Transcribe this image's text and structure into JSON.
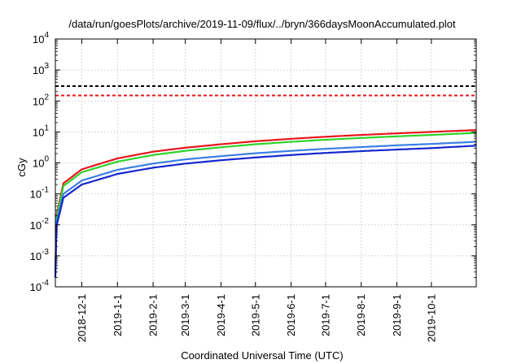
{
  "chart_data": {
    "type": "line",
    "title": "/data/run/goesPlots/archive/2019-11-09/flux/../bryn/366daysMoonAccumulated.plot",
    "xlabel": "Coordinated Universal Time (UTC)",
    "ylabel": "cGy",
    "yscale": "log",
    "ylim": [
      0.0001,
      10000
    ],
    "xlim": [
      "2018-11-08",
      "2019-11-09"
    ],
    "grid": true,
    "y_ticks": [
      {
        "value": 0.0001,
        "base": "10",
        "exp": "-4"
      },
      {
        "value": 0.001,
        "base": "10",
        "exp": "-3"
      },
      {
        "value": 0.01,
        "base": "10",
        "exp": "-2"
      },
      {
        "value": 0.1,
        "base": "10",
        "exp": "-1"
      },
      {
        "value": 1,
        "base": "10",
        "exp": "0"
      },
      {
        "value": 10,
        "base": "10",
        "exp": "1"
      },
      {
        "value": 100,
        "base": "10",
        "exp": "2"
      },
      {
        "value": 1000,
        "base": "10",
        "exp": "3"
      },
      {
        "value": 10000,
        "base": "10",
        "exp": "4"
      }
    ],
    "x_ticks": [
      {
        "date": "2018-12-01",
        "label": "2018-12-1"
      },
      {
        "date": "2019-01-01",
        "label": "2019-1-1"
      },
      {
        "date": "2019-02-01",
        "label": "2019-2-1"
      },
      {
        "date": "2019-03-01",
        "label": "2019-3-1"
      },
      {
        "date": "2019-04-01",
        "label": "2019-4-1"
      },
      {
        "date": "2019-05-01",
        "label": "2019-5-1"
      },
      {
        "date": "2019-06-01",
        "label": "2019-6-1"
      },
      {
        "date": "2019-07-01",
        "label": "2019-7-1"
      },
      {
        "date": "2019-08-01",
        "label": "2019-8-1"
      },
      {
        "date": "2019-09-01",
        "label": "2019-9-1"
      },
      {
        "date": "2019-10-01",
        "label": "2019-10-1"
      }
    ],
    "thresholds": [
      {
        "value": 300,
        "color": "#000000",
        "style": "dashed"
      },
      {
        "value": 150,
        "color": "#e8141b",
        "style": "dashed"
      }
    ],
    "series": [
      {
        "color": "#e8141b",
        "x": [
          "2018-11-08",
          "2018-11-09",
          "2018-11-15",
          "2018-12-01",
          "2019-01-01",
          "2019-02-01",
          "2019-03-01",
          "2019-04-01",
          "2019-05-01",
          "2019-06-01",
          "2019-07-01",
          "2019-08-01",
          "2019-09-01",
          "2019-10-01",
          "2019-11-09"
        ],
        "values": [
          0.00035,
          0.02,
          0.22,
          0.62,
          1.4,
          2.3,
          3.1,
          4.0,
          5.0,
          6.0,
          7.0,
          8.0,
          9.0,
          10.0,
          11.5
        ]
      },
      {
        "color": "#2ed12b",
        "x": [
          "2018-11-08",
          "2018-11-09",
          "2018-11-15",
          "2018-12-01",
          "2019-01-01",
          "2019-02-01",
          "2019-03-01",
          "2019-04-01",
          "2019-05-01",
          "2019-06-01",
          "2019-07-01",
          "2019-08-01",
          "2019-09-01",
          "2019-10-01",
          "2019-11-09"
        ],
        "values": [
          0.0003,
          0.017,
          0.18,
          0.5,
          1.1,
          1.8,
          2.45,
          3.2,
          4.0,
          4.8,
          5.6,
          6.4,
          7.2,
          8.0,
          9.3
        ]
      },
      {
        "color": "#3b7fe3",
        "x": [
          "2018-11-08",
          "2018-11-09",
          "2018-11-15",
          "2018-12-01",
          "2019-01-01",
          "2019-02-01",
          "2019-03-01",
          "2019-04-01",
          "2019-05-01",
          "2019-06-01",
          "2019-07-01",
          "2019-08-01",
          "2019-09-01",
          "2019-10-01",
          "2019-11-09"
        ],
        "values": [
          0.00025,
          0.012,
          0.1,
          0.27,
          0.6,
          0.95,
          1.3,
          1.65,
          2.05,
          2.45,
          2.85,
          3.25,
          3.7,
          4.1,
          4.8
        ]
      },
      {
        "color": "#1527cf",
        "x": [
          "2018-11-08",
          "2018-11-09",
          "2018-11-15",
          "2018-12-01",
          "2019-01-01",
          "2019-02-01",
          "2019-03-01",
          "2019-04-01",
          "2019-05-01",
          "2019-06-01",
          "2019-07-01",
          "2019-08-01",
          "2019-09-01",
          "2019-10-01",
          "2019-11-09"
        ],
        "values": [
          0.0002,
          0.009,
          0.075,
          0.2,
          0.44,
          0.7,
          0.95,
          1.22,
          1.5,
          1.8,
          2.1,
          2.4,
          2.7,
          3.0,
          3.6
        ]
      }
    ]
  }
}
